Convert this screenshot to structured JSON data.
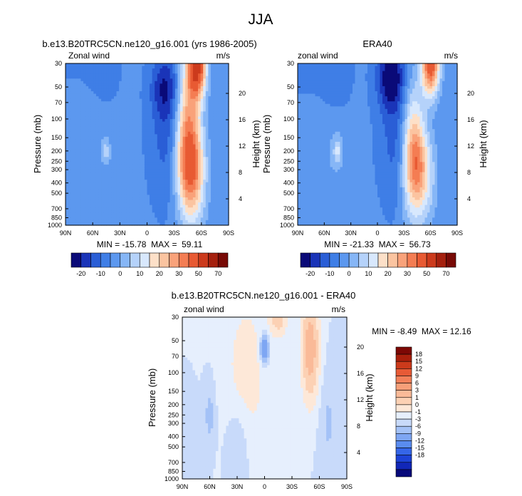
{
  "figure": {
    "title": "JJA"
  },
  "chart_data": [
    {
      "type": "heatmap",
      "id": "model",
      "title": "b.e13.B20TRC5CN.ne120_g16.001 (yrs 1986-2005)",
      "left_label": "Zonal wind",
      "right_label": "m/s",
      "xlabel": "",
      "ylabel": "Pressure (mb)",
      "y2label": "Height (km)",
      "x_ticks": [
        "90N",
        "60N",
        "30N",
        "0",
        "30S",
        "60S",
        "90S"
      ],
      "y_ticks": [
        "30",
        "50",
        "70",
        "100",
        "150",
        "200",
        "250",
        "300",
        "400",
        "500",
        "700",
        "850",
        "1000"
      ],
      "y2_ticks": [
        "20",
        "16",
        "12",
        "8",
        "4"
      ],
      "stats": "MIN = -15.78  MAX =  59.11",
      "features": [
        {
          "lat": -20,
          "p": 50,
          "value": -14,
          "wlat": 15,
          "wlog": 0.3
        },
        {
          "lat": -25,
          "p": 150,
          "value": -9,
          "wlat": 20,
          "wlog": 0.6
        },
        {
          "lat": 45,
          "p": 200,
          "value": 3,
          "wlat": 9,
          "wlog": 0.23
        },
        {
          "lat": 45,
          "p": 200,
          "value": 8,
          "wlat": 4,
          "wlog": 0.1
        },
        {
          "lat": 65,
          "p": 30,
          "value": -6,
          "wlat": 28,
          "wlog": 0.45
        },
        {
          "lat": -55,
          "p": 30,
          "value": 50,
          "wlat": 10,
          "wlog": 0.3
        },
        {
          "lat": -45,
          "p": 150,
          "value": 36,
          "wlat": 14,
          "wlog": 0.7
        },
        {
          "lat": -50,
          "p": 300,
          "value": 20,
          "wlat": 15,
          "wlog": 0.35
        },
        {
          "lat": -55,
          "p": 700,
          "value": 5,
          "wlat": 12,
          "wlog": 0.25
        },
        {
          "lat": 60,
          "p": 850,
          "value": -3,
          "wlat": 20,
          "wlog": 0.2
        }
      ],
      "colorbar": {
        "orientation": "horizontal",
        "tick_labels": [
          "-20",
          "-10",
          "0",
          "10",
          "20",
          "30",
          "50",
          "70"
        ]
      }
    },
    {
      "type": "heatmap",
      "id": "obs",
      "title": "ERA40",
      "left_label": "zonal wind",
      "right_label": "m/s",
      "xlabel": "",
      "ylabel": "Pressure (mb)",
      "y2label": "Height (km)",
      "x_ticks": [
        "90N",
        "60N",
        "30N",
        "0",
        "30S",
        "60S",
        "90S"
      ],
      "y_ticks": [
        "30",
        "50",
        "70",
        "100",
        "150",
        "200",
        "250",
        "300",
        "400",
        "500",
        "700",
        "850",
        "1000"
      ],
      "y2_ticks": [
        "20",
        "16",
        "12",
        "8",
        "4"
      ],
      "stats": "MIN = -21.33  MAX =  56.73",
      "features": [
        {
          "lat": -15,
          "p": 40,
          "value": -20,
          "wlat": 15,
          "wlog": 0.3
        },
        {
          "lat": -25,
          "p": 150,
          "value": -10,
          "wlat": 20,
          "wlog": 0.6
        },
        {
          "lat": 45,
          "p": 200,
          "value": 6,
          "wlat": 9,
          "wlog": 0.23
        },
        {
          "lat": 45,
          "p": 200,
          "value": 10,
          "wlat": 4,
          "wlog": 0.1
        },
        {
          "lat": 65,
          "p": 30,
          "value": -8,
          "wlat": 28,
          "wlog": 0.45
        },
        {
          "lat": -60,
          "p": 30,
          "value": 45,
          "wlat": 10,
          "wlog": 0.3
        },
        {
          "lat": -40,
          "p": 200,
          "value": 32,
          "wlat": 13,
          "wlog": 0.6
        },
        {
          "lat": -50,
          "p": 300,
          "value": 18,
          "wlat": 15,
          "wlog": 0.35
        },
        {
          "lat": -55,
          "p": 700,
          "value": 4,
          "wlat": 12,
          "wlog": 0.25
        },
        {
          "lat": 60,
          "p": 850,
          "value": -3,
          "wlat": 20,
          "wlog": 0.2
        }
      ],
      "colorbar": {
        "orientation": "horizontal",
        "tick_labels": [
          "-20",
          "-10",
          "0",
          "10",
          "20",
          "30",
          "50",
          "70"
        ]
      }
    },
    {
      "type": "heatmap",
      "id": "diff",
      "title": "b.e13.B20TRC5CN.ne120_g16.001 - ERA40",
      "left_label": "zonal wind",
      "right_label": "m/s",
      "xlabel": "",
      "ylabel": "Pressure (mb)",
      "y2label": "Height (km)",
      "x_ticks": [
        "90N",
        "60N",
        "30N",
        "0",
        "30S",
        "60S",
        "90S"
      ],
      "y_ticks": [
        "30",
        "50",
        "70",
        "100",
        "150",
        "200",
        "250",
        "300",
        "400",
        "500",
        "700",
        "850",
        "1000"
      ],
      "y2_ticks": [
        "20",
        "16",
        "12",
        "8",
        "4"
      ],
      "stats": "MIN = -8.49  MAX = 12.16",
      "features": [
        {
          "lat": -50,
          "p": 60,
          "value": 9,
          "wlat": 8,
          "wlog": 0.4
        },
        {
          "lat": -15,
          "p": 30,
          "value": 5,
          "wlat": 8,
          "wlog": 0.15
        },
        {
          "lat": 0,
          "p": 60,
          "value": -7,
          "wlat": 4,
          "wlog": 0.12
        },
        {
          "lat": 20,
          "p": 100,
          "value": 1.5,
          "wlat": 25,
          "wlog": 0.8
        },
        {
          "lat": 60,
          "p": 250,
          "value": -1.5,
          "wlat": 6,
          "wlog": 0.3
        },
        {
          "lat": 30,
          "p": 500,
          "value": -1.5,
          "wlat": 12,
          "wlog": 0.4
        },
        {
          "lat": 80,
          "p": 700,
          "value": -1,
          "wlat": 10,
          "wlog": 0.4
        },
        {
          "lat": -70,
          "p": 300,
          "value": -1.2,
          "wlat": 8,
          "wlog": 0.4
        }
      ],
      "colorbar": {
        "orientation": "vertical",
        "tick_labels": [
          "18",
          "15",
          "12",
          "9",
          "6",
          "3",
          "1",
          "0",
          "-1",
          "-3",
          "-6",
          "-9",
          "-12",
          "-15",
          "-18"
        ]
      }
    }
  ],
  "colors": {
    "full": [
      "#0a0a78",
      "#1a34b8",
      "#2a5ed6",
      "#3f7ee6",
      "#5c98ef",
      "#86b6f6",
      "#b5d2fa",
      "#d8e8fd",
      "#fde0c8",
      "#fbc4a0",
      "#f9a27a",
      "#f47d53",
      "#e85a33",
      "#cc3a1c",
      "#a5200e",
      "#780a06"
    ],
    "diff": [
      "#07097a",
      "#1127b8",
      "#1d43d6",
      "#3566e8",
      "#5a8cef",
      "#7ea6f3",
      "#a4c2f7",
      "#c8dafa",
      "#e6effd",
      "#fde8d8",
      "#fcd1b4",
      "#faba98",
      "#f79f79",
      "#f2805a",
      "#e75a36",
      "#cc3a1b",
      "#a91f0c",
      "#7d0805"
    ]
  }
}
